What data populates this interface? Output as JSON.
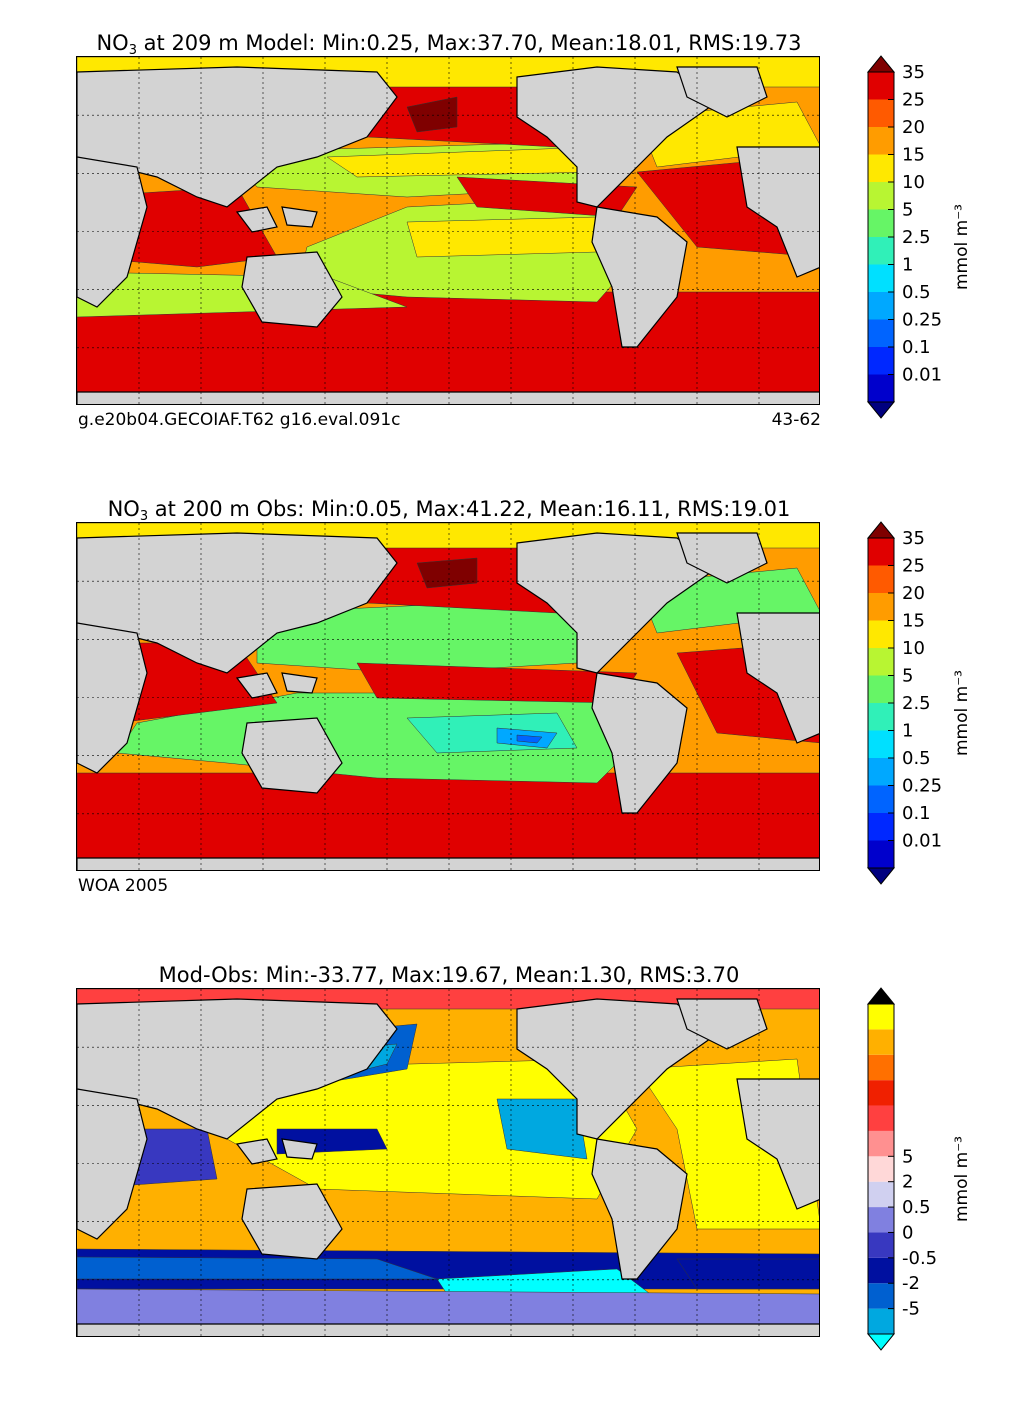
{
  "panels": [
    {
      "title_species": "NO",
      "title_sub": "3",
      "title_rest": " at 209 m Model: Min:0.25, Max:37.70, Mean:18.01, RMS:19.73",
      "footer_left": "g.e20b04.GECOIAF.T62 g16.eval.091c",
      "footer_right": "43-62",
      "colorbar_label": "mmol m⁻³"
    },
    {
      "title_species": "NO",
      "title_sub": "3",
      "title_rest": " at 200 m Obs: Min:0.05, Max:41.22, Mean:16.11, RMS:19.01",
      "footer_left": "WOA 2005",
      "footer_right": "",
      "colorbar_label": "mmol m⁻³"
    },
    {
      "title_species": "",
      "title_sub": "",
      "title_rest": "Mod-Obs: Min:-33.77, Max:19.67, Mean:1.30, RMS:3.70",
      "footer_left": "",
      "footer_right": "",
      "colorbar_label": "mmol m⁻³"
    }
  ],
  "chart_data": [
    {
      "type": "heatmap",
      "title": "NO3 at 209 m Model: Min:0.25, Max:37.70, Mean:18.01, RMS:19.73",
      "colorbar": {
        "label": "mmol m-3",
        "levels": [
          "0.01",
          "0.1",
          "0.25",
          "0.5",
          "1",
          "2.5",
          "5",
          "10",
          "15",
          "20",
          "25",
          "35"
        ],
        "colors": [
          "#00007f",
          "#0000cc",
          "#0028ff",
          "#0064ff",
          "#00a8ff",
          "#00e0ff",
          "#30f0b8",
          "#66f566",
          "#b8f532",
          "#ffe800",
          "#ff9c00",
          "#ff5a00",
          "#e00000",
          "#7f0000"
        ]
      },
      "dataset": "g.e20b04.GECOIAF.T62 g16.eval.091c",
      "years": "43-62"
    },
    {
      "type": "heatmap",
      "title": "NO3 at 200 m Obs: Min:0.05, Max:41.22, Mean:16.11, RMS:19.01",
      "colorbar": {
        "label": "mmol m-3",
        "levels": [
          "0.01",
          "0.1",
          "0.25",
          "0.5",
          "1",
          "2.5",
          "5",
          "10",
          "15",
          "20",
          "25",
          "35"
        ],
        "colors": [
          "#00007f",
          "#0000cc",
          "#0028ff",
          "#0064ff",
          "#00a8ff",
          "#00e0ff",
          "#30f0b8",
          "#66f566",
          "#b8f532",
          "#ffe800",
          "#ff9c00",
          "#ff5a00",
          "#e00000",
          "#7f0000"
        ]
      },
      "dataset": "WOA 2005"
    },
    {
      "type": "heatmap",
      "title": "Mod-Obs: Min:-33.77, Max:19.67, Mean:1.30, RMS:3.70",
      "colorbar": {
        "label": "mmol m-3",
        "levels": [
          "-5",
          "-2",
          "-0.5",
          "0",
          "0.5",
          "2",
          "5"
        ],
        "colors": [
          "#00ffff",
          "#00a8e0",
          "#0060d0",
          "#0010a0",
          "#3838c0",
          "#8080e0",
          "#d0d0f0",
          "#ffd8d8",
          "#ff9090",
          "#ff4040",
          "#f02000",
          "#ff7000",
          "#ffb000",
          "#ffff00",
          "#000000"
        ]
      }
    }
  ]
}
